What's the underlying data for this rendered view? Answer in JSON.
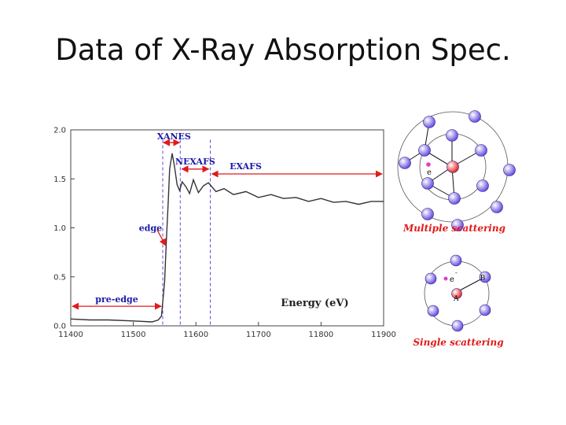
{
  "slide": {
    "title": "Data of X-Ray Absorption Spec."
  },
  "chart_data": {
    "type": "line",
    "xlabel": "Energy (eV)",
    "ylabel": "",
    "xlim": [
      11400,
      11900
    ],
    "ylim": [
      0,
      2.0
    ],
    "x_ticks": [
      "11400",
      "11500",
      "11600",
      "11700",
      "11800",
      "11900"
    ],
    "y_ticks": [
      "0.0",
      "0.5",
      "1.0",
      "1.5",
      "2.0"
    ],
    "grid": false,
    "series": [
      {
        "color": "#333333",
        "x": [
          11400,
          11430,
          11460,
          11500,
          11530,
          11540,
          11545,
          11550,
          11553,
          11556,
          11558,
          11562,
          11566,
          11570,
          11574,
          11578,
          11584,
          11590,
          11596,
          11604,
          11612,
          11620,
          11632,
          11645,
          11660,
          11680,
          11700,
          11720,
          11740,
          11760,
          11780,
          11800,
          11820,
          11840,
          11860,
          11880,
          11900
        ],
        "y": [
          0.07,
          0.06,
          0.06,
          0.05,
          0.04,
          0.06,
          0.1,
          0.45,
          0.9,
          1.3,
          1.6,
          1.76,
          1.62,
          1.44,
          1.38,
          1.47,
          1.42,
          1.35,
          1.49,
          1.36,
          1.43,
          1.46,
          1.37,
          1.4,
          1.34,
          1.37,
          1.31,
          1.34,
          1.3,
          1.31,
          1.27,
          1.3,
          1.26,
          1.27,
          1.24,
          1.27,
          1.27
        ]
      }
    ],
    "dashed_lines_x": [
      11547,
      11575,
      11623
    ],
    "regions": [
      {
        "label": "pre-edge",
        "x1": 11400,
        "x2": 11547,
        "y": 0.2
      },
      {
        "label": "NEXAFS",
        "x1": 11575,
        "x2": 11623,
        "y": 1.6
      },
      {
        "label": "EXAFS",
        "x1": 11623,
        "x2": 11900,
        "y": 1.55
      }
    ],
    "annotations": [
      {
        "label": "XANES",
        "x": 11565,
        "y": 1.87
      },
      {
        "label": "edge",
        "x": 11553,
        "y": 0.82
      }
    ]
  },
  "diagrams": {
    "multiple_caption": "Multiple scattering",
    "single_caption": "Single scattering",
    "electron_label": "e",
    "electron_superscript": "-",
    "atom_a_label": "A",
    "atom_b_label": "B",
    "atom_colors": {
      "scatterer": "#6a4fe0",
      "absorber": "#e52b2b",
      "electron": "#e040c0"
    }
  }
}
